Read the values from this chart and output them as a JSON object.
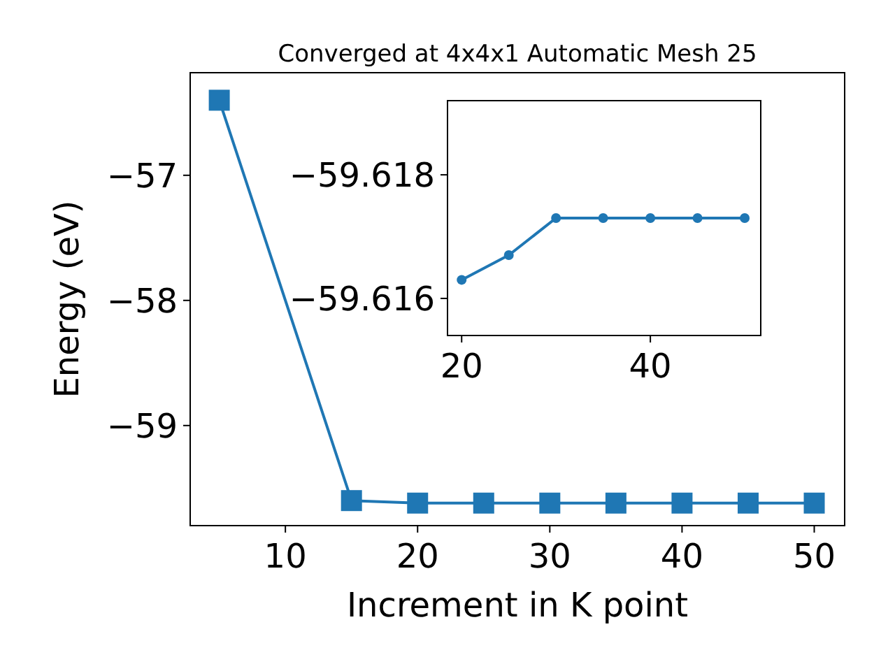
{
  "chart_data": [
    {
      "type": "line",
      "title": "Converged at 4x4x1 Automatic Mesh 25",
      "xlabel": "Increment in K point",
      "ylabel": "Energy (eV)",
      "x": [
        5,
        15,
        20,
        25,
        30,
        35,
        40,
        45,
        50
      ],
      "series": [
        {
          "color": "#1f77b4",
          "values": [
            -56.4,
            -59.6,
            -59.62,
            -59.62,
            -59.62,
            -59.62,
            -59.62,
            -59.62,
            -59.62
          ]
        }
      ],
      "xlim": [
        2.8,
        52.3
      ],
      "xticks": [
        10,
        20,
        30,
        40,
        50
      ],
      "ylim": [
        -59.8,
        -56.18
      ],
      "yticks": [
        {
          "value": -57,
          "label": "−57"
        },
        {
          "value": -58,
          "label": "−58"
        },
        {
          "value": -59,
          "label": "−59"
        }
      ],
      "marker": "square",
      "line_style": "solid",
      "grid": false
    },
    {
      "type": "line",
      "x": [
        20,
        25,
        30,
        35,
        40,
        45,
        50
      ],
      "series": [
        {
          "color": "#1f77b4",
          "values": [
            -59.6163,
            -59.6167,
            -59.6173,
            -59.6173,
            -59.6173,
            -59.6173,
            -59.6173
          ]
        }
      ],
      "xlim": [
        18.5,
        51.7
      ],
      "xticks": [
        20,
        40
      ],
      "ylim": [
        -59.6154,
        -59.6192
      ],
      "yticks": [
        {
          "value": -59.618,
          "label": "−59.618"
        },
        {
          "value": -59.616,
          "label": "−59.616"
        }
      ],
      "marker": "circle",
      "line_style": "solid",
      "grid": false
    }
  ]
}
